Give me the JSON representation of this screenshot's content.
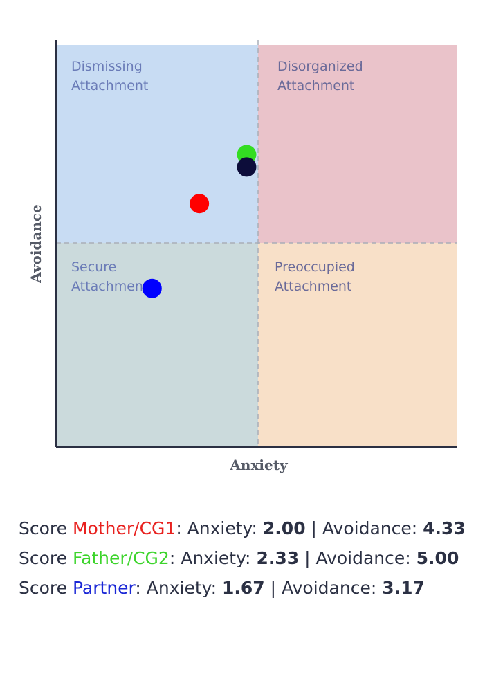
{
  "chart_data": {
    "type": "scatter",
    "xlabel": "Anxiety",
    "ylabel": "Avoidance",
    "xlim": [
      1,
      3.8
    ],
    "ylim": [
      1,
      6.5
    ],
    "grid": false,
    "quadrants": [
      {
        "label_line1": "Dismissing",
        "label_line2": "Attachment",
        "position": "top-left",
        "fill": "#c8dcf3",
        "text_color": "#6a7bb7"
      },
      {
        "label_line1": "Disorganized",
        "label_line2": "Attachment",
        "position": "top-right",
        "fill": "#eac3ca",
        "text_color": "#6a6a99"
      },
      {
        "label_line1": "Secure",
        "label_line2": "Attachment",
        "position": "bottom-left",
        "fill": "#cbdadc",
        "text_color": "#6a7bb7"
      },
      {
        "label_line1": "Preoccupied",
        "label_line2": "Attachment",
        "position": "bottom-right",
        "fill": "#f8e0c8",
        "text_color": "#6a6a99"
      }
    ],
    "series": [
      {
        "name": "Mother/CG1",
        "color": "#ff0000",
        "x": 2.0,
        "y": 4.33
      },
      {
        "name": "Father/CG2",
        "color": "#33dd22",
        "x": 2.33,
        "y": 5.0
      },
      {
        "name": "Father/CG2",
        "color": "#0d0d3a",
        "x": 2.33,
        "y": 4.83
      },
      {
        "name": "Partner",
        "color": "#0000ff",
        "x": 1.67,
        "y": 3.17
      }
    ]
  },
  "scores": [
    {
      "prefix": "Score ",
      "name": "Mother/CG1",
      "color": "#e8211f",
      "anx_label": ": Anxiety: ",
      "anx": "2.00",
      "sep": " | Avoidance: ",
      "avo": "4.33"
    },
    {
      "prefix": "Score ",
      "name": "Father/CG2",
      "color": "#3cd42b",
      "anx_label": ": Anxiety: ",
      "anx": "2.33",
      "sep": " | Avoidance: ",
      "avo": "5.00"
    },
    {
      "prefix": "Score ",
      "name": "Partner",
      "color": "#1a27d6",
      "anx_label": ": Anxiety: ",
      "anx": "1.67",
      "sep": " | Avoidance: ",
      "avo": "3.17"
    }
  ]
}
